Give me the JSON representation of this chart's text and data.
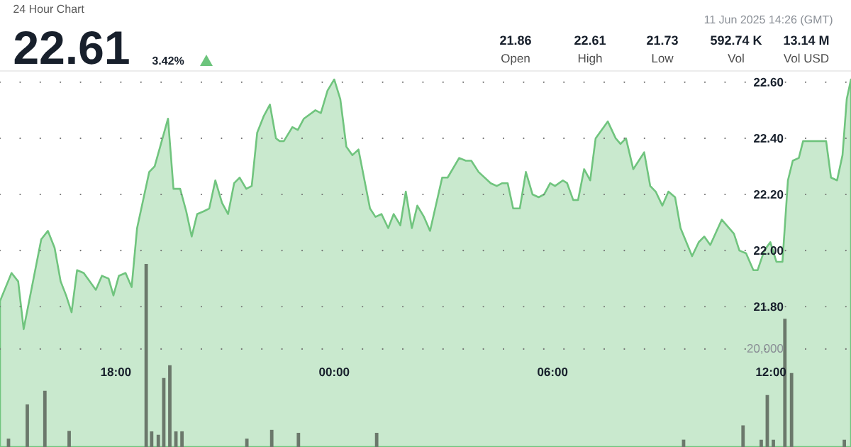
{
  "chart_data": {
    "type": "area",
    "title": "24 Hour Chart",
    "annotations": [
      "22.61",
      "3.42%",
      "11 Jun 2025 14:26 (GMT)",
      "21.86",
      "Open",
      "22.61",
      "High",
      "21.73",
      "Low",
      "592.74 K",
      "Vol",
      "13.14 M",
      "Vol USD"
    ],
    "xlim": [
      "2025-06-10T14:49",
      "2025-06-11T14:12"
    ],
    "xticks": [
      {
        "value": "2025-06-10T18:00",
        "label": "18:00"
      },
      {
        "value": "2025-06-11T00:00",
        "label": "00:00"
      },
      {
        "value": "2025-06-11T06:00",
        "label": "06:00"
      },
      {
        "value": "2025-06-11T12:00",
        "label": "12:00"
      }
    ],
    "ylim": [
      21.3,
      22.64
    ],
    "yticks": [
      {
        "value": 21.8,
        "label": "21.80"
      },
      {
        "value": 22.0,
        "label": "22.00"
      },
      {
        "value": 22.2,
        "label": "22.20"
      },
      {
        "value": 22.4,
        "label": "22.40"
      },
      {
        "value": 22.6,
        "label": "22.60"
      }
    ],
    "y2lim": [
      0,
      76800
    ],
    "y2ticks": [
      {
        "value": 20000,
        "label": "20,000"
      }
    ],
    "grid": "y",
    "series": [
      {
        "color": "#70c47e",
        "x": [
          "2025-06-10T14:49",
          "2025-06-10T15:08",
          "2025-06-10T15:19",
          "2025-06-10T15:28",
          "2025-06-10T15:57",
          "2025-06-10T16:08",
          "2025-06-10T16:19",
          "2025-06-10T16:29",
          "2025-06-10T16:38",
          "2025-06-10T16:47",
          "2025-06-10T16:56",
          "2025-06-10T17:07",
          "2025-06-10T17:27",
          "2025-06-10T17:37",
          "2025-06-10T17:48",
          "2025-06-10T17:56",
          "2025-06-10T18:05",
          "2025-06-10T18:16",
          "2025-06-10T18:26",
          "2025-06-10T18:35",
          "2025-06-10T18:55",
          "2025-06-10T19:04",
          "2025-06-10T19:26",
          "2025-06-10T19:35",
          "2025-06-10T19:46",
          "2025-06-10T19:56",
          "2025-06-10T20:05",
          "2025-06-10T20:14",
          "2025-06-10T20:25",
          "2025-06-10T20:34",
          "2025-06-10T20:44",
          "2025-06-10T20:55",
          "2025-06-10T21:05",
          "2025-06-10T21:15",
          "2025-06-10T21:24",
          "2025-06-10T21:35",
          "2025-06-10T21:44",
          "2025-06-10T21:53",
          "2025-06-10T22:04",
          "2025-06-10T22:14",
          "2025-06-10T22:24",
          "2025-06-10T22:30",
          "2025-06-10T22:37",
          "2025-06-10T22:51",
          "2025-06-10T23:00",
          "2025-06-10T23:10",
          "2025-06-10T23:29",
          "2025-06-10T23:38",
          "2025-06-10T23:49",
          "2025-06-11T00:00",
          "2025-06-11T00:10",
          "2025-06-11T00:20",
          "2025-06-11T00:30",
          "2025-06-11T00:40",
          "2025-06-11T00:59",
          "2025-06-11T01:08",
          "2025-06-11T01:18",
          "2025-06-11T01:29",
          "2025-06-11T01:38",
          "2025-06-11T01:49",
          "2025-06-11T01:58",
          "2025-06-11T02:08",
          "2025-06-11T02:17",
          "2025-06-11T02:28",
          "2025-06-11T02:38",
          "2025-06-11T02:58",
          "2025-06-11T03:07",
          "2025-06-11T03:26",
          "2025-06-11T03:37",
          "2025-06-11T03:46",
          "2025-06-11T03:58",
          "2025-06-11T04:18",
          "2025-06-11T04:28",
          "2025-06-11T04:37",
          "2025-06-11T04:46",
          "2025-06-11T04:55",
          "2025-06-11T05:06",
          "2025-06-11T05:16",
          "2025-06-11T05:27",
          "2025-06-11T05:37",
          "2025-06-11T05:46",
          "2025-06-11T05:56",
          "2025-06-11T06:04",
          "2025-06-11T06:17",
          "2025-06-11T06:24",
          "2025-06-11T06:34",
          "2025-06-11T06:42",
          "2025-06-11T06:52",
          "2025-06-11T07:02",
          "2025-06-11T07:11",
          "2025-06-11T07:31",
          "2025-06-11T07:44",
          "2025-06-11T07:52",
          "2025-06-11T08:01",
          "2025-06-11T08:13",
          "2025-06-11T08:31",
          "2025-06-11T08:41",
          "2025-06-11T08:50",
          "2025-06-11T09:01",
          "2025-06-11T09:11",
          "2025-06-11T09:22",
          "2025-06-11T09:31",
          "2025-06-11T09:50",
          "2025-06-11T10:01",
          "2025-06-11T10:10",
          "2025-06-11T10:20",
          "2025-06-11T10:39",
          "2025-06-11T10:59",
          "2025-06-11T11:08",
          "2025-06-11T11:19",
          "2025-06-11T11:31",
          "2025-06-11T11:38",
          "2025-06-11T11:49",
          "2025-06-11T11:59",
          "2025-06-11T12:09",
          "2025-06-11T12:19",
          "2025-06-11T12:28",
          "2025-06-11T12:36",
          "2025-06-11T12:46",
          "2025-06-11T12:53",
          "2025-06-11T13:31",
          "2025-06-11T13:39",
          "2025-06-11T13:49",
          "2025-06-11T13:58",
          "2025-06-11T14:05",
          "2025-06-11T14:12"
        ],
        "values": [
          21.82,
          21.92,
          21.89,
          21.72,
          22.04,
          22.07,
          22.01,
          21.89,
          21.84,
          21.78,
          21.93,
          21.92,
          21.86,
          21.91,
          21.9,
          21.84,
          21.91,
          21.92,
          21.87,
          22.08,
          22.28,
          22.3,
          22.47,
          22.22,
          22.22,
          22.14,
          22.05,
          22.13,
          22.14,
          22.15,
          22.25,
          22.17,
          22.13,
          22.24,
          22.26,
          22.22,
          22.23,
          22.42,
          22.48,
          22.52,
          22.4,
          22.39,
          22.39,
          22.44,
          22.43,
          22.47,
          22.5,
          22.49,
          22.57,
          22.61,
          22.54,
          22.37,
          22.34,
          22.36,
          22.15,
          22.12,
          22.13,
          22.08,
          22.13,
          22.09,
          22.21,
          22.08,
          22.16,
          22.12,
          22.07,
          22.26,
          22.26,
          22.33,
          22.32,
          22.32,
          22.28,
          22.24,
          22.23,
          22.24,
          22.24,
          22.15,
          22.15,
          22.28,
          22.2,
          22.19,
          22.2,
          22.24,
          22.23,
          22.25,
          22.24,
          22.18,
          22.18,
          22.29,
          22.25,
          22.4,
          22.46,
          22.4,
          22.38,
          22.4,
          22.29,
          22.35,
          22.23,
          22.21,
          22.16,
          22.21,
          22.19,
          22.08,
          21.98,
          22.03,
          22.05,
          22.02,
          22.11,
          22.06,
          22.0,
          21.99,
          21.93,
          21.93,
          22.0,
          22.03,
          21.96,
          21.96,
          22.25,
          22.32,
          22.33,
          22.39,
          22.39,
          22.26,
          22.25,
          22.34,
          22.54,
          22.61
        ]
      },
      {
        "type": "bar",
        "axis": "y2",
        "color": "#6b786b",
        "x": [
          "2025-06-10T15:03",
          "2025-06-10T15:34",
          "2025-06-10T16:03",
          "2025-06-10T16:43",
          "2025-06-10T18:50",
          "2025-06-10T18:59",
          "2025-06-10T19:10",
          "2025-06-10T19:19",
          "2025-06-10T19:29",
          "2025-06-10T19:39",
          "2025-06-10T19:49",
          "2025-06-10T21:36",
          "2025-06-10T22:17",
          "2025-06-10T23:01",
          "2025-06-11T01:10",
          "2025-06-11T09:36",
          "2025-06-11T11:14",
          "2025-06-11T11:44",
          "2025-06-11T11:54",
          "2025-06-11T12:04",
          "2025-06-11T12:23",
          "2025-06-11T12:34",
          "2025-06-11T14:01"
        ],
        "values": [
          1700,
          8700,
          11500,
          3300,
          37400,
          3200,
          2500,
          14100,
          16700,
          3200,
          3200,
          1700,
          3500,
          2900,
          2900,
          1500,
          4400,
          1500,
          10600,
          1500,
          26200,
          15100,
          1500
        ]
      }
    ]
  }
}
